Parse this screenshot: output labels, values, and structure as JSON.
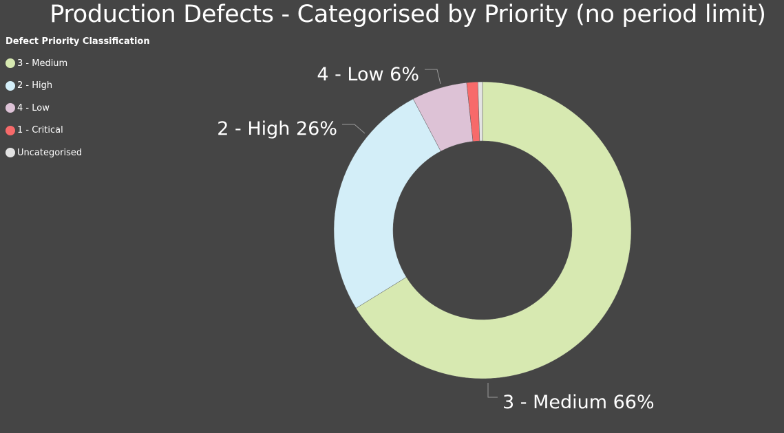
{
  "chart_data": {
    "type": "pie",
    "title": "Production Defects - Categorised by Priority (no period limit)",
    "legend_title": "Defect Priority Classification",
    "legend_position": "top-left",
    "donut": true,
    "series": [
      {
        "name": "3 - Medium",
        "value": 66,
        "label": "3 - Medium 66%",
        "color": "#d7e9b1"
      },
      {
        "name": "2 - High",
        "value": 26,
        "label": "2 - High 26%",
        "color": "#d3eef8"
      },
      {
        "name": "4 - Low",
        "value": 6,
        "label": "4 - Low 6%",
        "color": "#ddc2d6"
      },
      {
        "name": "1 - Critical",
        "value": 1.2,
        "label": "",
        "color": "#f76a6a"
      },
      {
        "name": "Uncategorised",
        "value": 0.5,
        "label": "",
        "color": "#e3e3e3"
      }
    ]
  }
}
